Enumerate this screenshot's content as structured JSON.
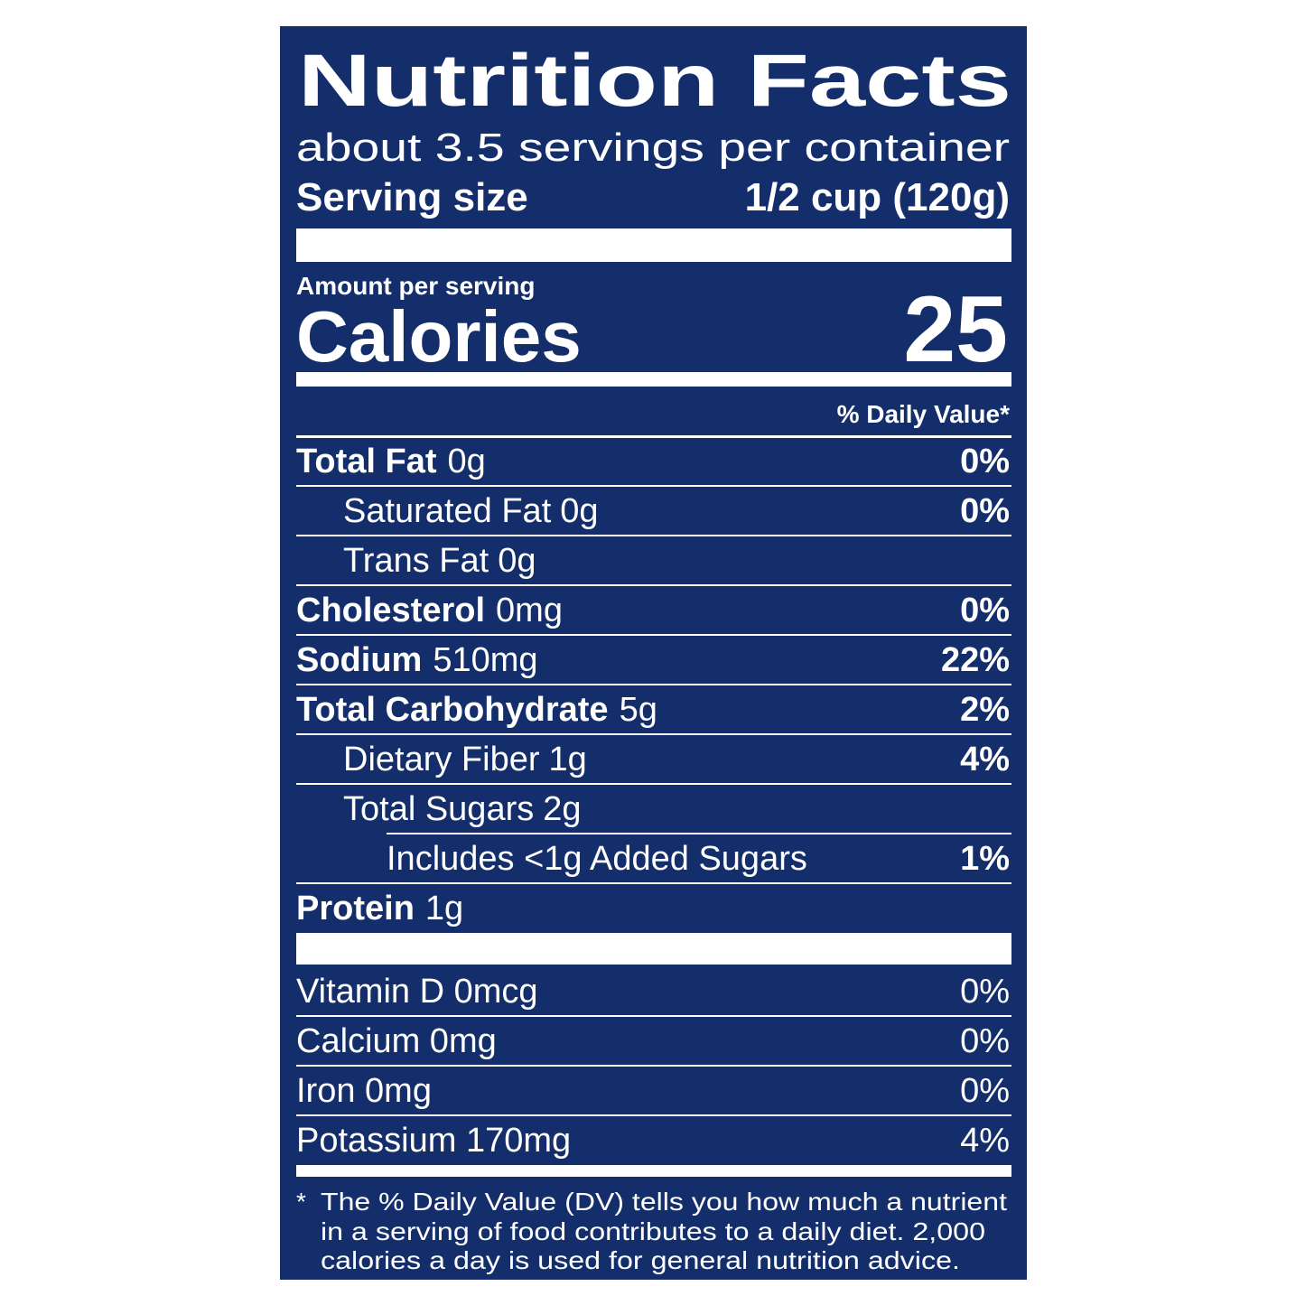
{
  "title": "Nutrition Facts",
  "servings": "about 3.5 servings per container",
  "serving_size": {
    "label": "Serving size",
    "value": "1/2 cup (120g)"
  },
  "amount_per_serving": "Amount per serving",
  "calories": {
    "label": "Calories",
    "value": "25"
  },
  "daily_value_header": "% Daily Value*",
  "nutrients": [
    {
      "name": "Total Fat",
      "amount": "0g",
      "dv": "0%"
    },
    {
      "name": "Saturated Fat",
      "amount": "0g",
      "dv": "0%"
    },
    {
      "name": "Trans Fat",
      "amount": "0g"
    },
    {
      "name": "Cholesterol",
      "amount": "0mg",
      "dv": "0%"
    },
    {
      "name": "Sodium",
      "amount": "510mg",
      "dv": "22%"
    },
    {
      "name": "Total Carbohydrate",
      "amount": "5g",
      "dv": "2%"
    },
    {
      "name": "Dietary Fiber",
      "amount": "1g",
      "dv": "4%"
    },
    {
      "name": "Total Sugars",
      "amount": "2g"
    },
    {
      "name": "Includes <1g Added Sugars",
      "dv": "1%"
    },
    {
      "name": "Protein",
      "amount": "1g"
    }
  ],
  "vitamins": [
    {
      "name": "Vitamin D 0mcg",
      "dv": "0%"
    },
    {
      "name": "Calcium 0mg",
      "dv": "0%"
    },
    {
      "name": "Iron 0mg",
      "dv": "0%"
    },
    {
      "name": "Potassium 170mg",
      "dv": "4%"
    }
  ],
  "footnote": {
    "marker": "*",
    "lines": [
      "The % Daily Value (DV) tells you how much a nutrient",
      "in a serving of food contributes to a daily diet. 2,000",
      "calories a day is used for general nutrition advice."
    ]
  }
}
